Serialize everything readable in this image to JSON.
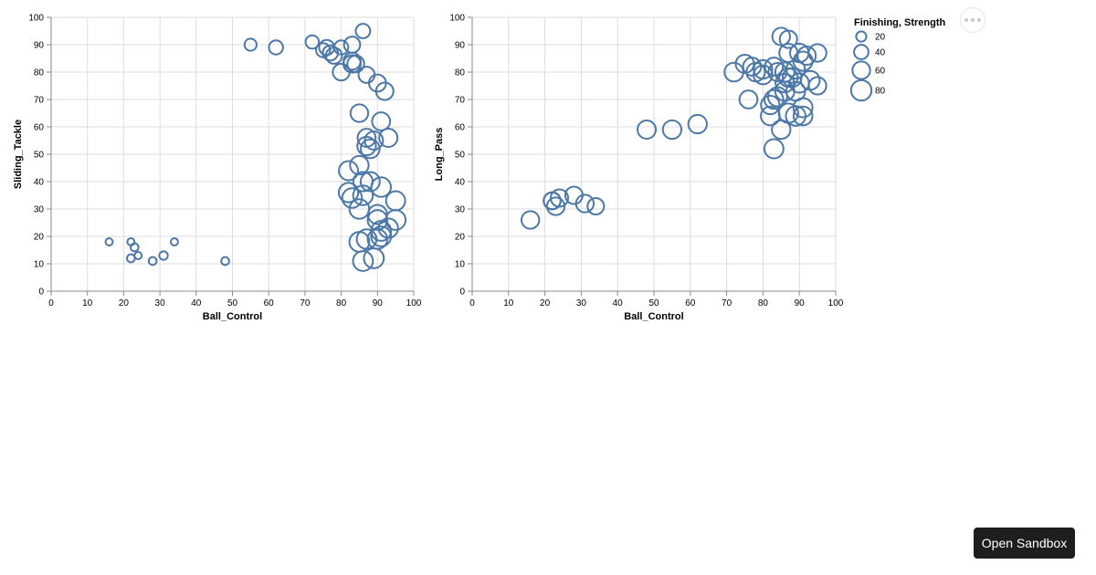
{
  "colors": {
    "mark": "#4c78a8"
  },
  "menu": {
    "icon": "more-horizontal-icon"
  },
  "sandbox_button": {
    "label": "Open Sandbox"
  },
  "legend": {
    "title": "Finishing, Strength",
    "values": [
      20,
      40,
      60,
      80
    ],
    "labels": [
      "20",
      "40",
      "60",
      "80"
    ]
  },
  "chart_data": [
    {
      "type": "scatter",
      "title": "",
      "xlabel": "Ball_Control",
      "ylabel": "Sliding_Tackle",
      "xlim": [
        0,
        100
      ],
      "ylim": [
        0,
        100
      ],
      "x_ticks": [
        "0",
        "10",
        "20",
        "30",
        "40",
        "50",
        "60",
        "70",
        "80",
        "90",
        "100"
      ],
      "y_ticks": [
        "0",
        "10",
        "20",
        "30",
        "40",
        "50",
        "60",
        "70",
        "80",
        "90",
        "100"
      ],
      "grid": true,
      "points": [
        {
          "x": 16,
          "y": 18,
          "size": 10
        },
        {
          "x": 22,
          "y": 18,
          "size": 10
        },
        {
          "x": 23,
          "y": 16,
          "size": 12
        },
        {
          "x": 22,
          "y": 12,
          "size": 12
        },
        {
          "x": 24,
          "y": 13,
          "size": 10
        },
        {
          "x": 28,
          "y": 11,
          "size": 12
        },
        {
          "x": 31,
          "y": 13,
          "size": 14
        },
        {
          "x": 34,
          "y": 18,
          "size": 10
        },
        {
          "x": 48,
          "y": 11,
          "size": 12
        },
        {
          "x": 55,
          "y": 90,
          "size": 28
        },
        {
          "x": 62,
          "y": 89,
          "size": 38
        },
        {
          "x": 72,
          "y": 91,
          "size": 34
        },
        {
          "x": 75,
          "y": 88,
          "size": 38
        },
        {
          "x": 76,
          "y": 89,
          "size": 44
        },
        {
          "x": 77,
          "y": 87,
          "size": 44
        },
        {
          "x": 78,
          "y": 86,
          "size": 50
        },
        {
          "x": 80,
          "y": 89,
          "size": 38
        },
        {
          "x": 80,
          "y": 80,
          "size": 54
        },
        {
          "x": 83,
          "y": 90,
          "size": 50
        },
        {
          "x": 83,
          "y": 84,
          "size": 56
        },
        {
          "x": 83,
          "y": 83,
          "size": 58
        },
        {
          "x": 84,
          "y": 83,
          "size": 54
        },
        {
          "x": 86,
          "y": 95,
          "size": 40
        },
        {
          "x": 87,
          "y": 79,
          "size": 50
        },
        {
          "x": 90,
          "y": 76,
          "size": 56
        },
        {
          "x": 92,
          "y": 73,
          "size": 58
        },
        {
          "x": 85,
          "y": 65,
          "size": 60
        },
        {
          "x": 91,
          "y": 62,
          "size": 62
        },
        {
          "x": 93,
          "y": 56,
          "size": 64
        },
        {
          "x": 87,
          "y": 56,
          "size": 62
        },
        {
          "x": 89,
          "y": 55,
          "size": 64
        },
        {
          "x": 87,
          "y": 53,
          "size": 66
        },
        {
          "x": 88,
          "y": 52,
          "size": 68
        },
        {
          "x": 85,
          "y": 46,
          "size": 66
        },
        {
          "x": 82,
          "y": 44,
          "size": 70
        },
        {
          "x": 88,
          "y": 40,
          "size": 70
        },
        {
          "x": 86,
          "y": 40,
          "size": 72
        },
        {
          "x": 91,
          "y": 38,
          "size": 74
        },
        {
          "x": 82,
          "y": 36,
          "size": 72
        },
        {
          "x": 83,
          "y": 34,
          "size": 74
        },
        {
          "x": 86,
          "y": 35,
          "size": 74
        },
        {
          "x": 95,
          "y": 33,
          "size": 70
        },
        {
          "x": 85,
          "y": 30,
          "size": 74
        },
        {
          "x": 90,
          "y": 28,
          "size": 70
        },
        {
          "x": 90,
          "y": 26,
          "size": 74
        },
        {
          "x": 95,
          "y": 26,
          "size": 76
        },
        {
          "x": 93,
          "y": 23,
          "size": 72
        },
        {
          "x": 91,
          "y": 22,
          "size": 76
        },
        {
          "x": 85,
          "y": 18,
          "size": 76
        },
        {
          "x": 87,
          "y": 19,
          "size": 74
        },
        {
          "x": 90,
          "y": 19,
          "size": 74
        },
        {
          "x": 91,
          "y": 20,
          "size": 76
        },
        {
          "x": 86,
          "y": 11,
          "size": 76
        },
        {
          "x": 89,
          "y": 12,
          "size": 76
        }
      ]
    },
    {
      "type": "scatter",
      "title": "",
      "xlabel": "Ball_Control",
      "ylabel": "Long_Pass",
      "xlim": [
        0,
        100
      ],
      "ylim": [
        0,
        100
      ],
      "x_ticks": [
        "0",
        "10",
        "20",
        "30",
        "40",
        "50",
        "60",
        "70",
        "80",
        "90",
        "100"
      ],
      "y_ticks": [
        "0",
        "10",
        "20",
        "30",
        "40",
        "50",
        "60",
        "70",
        "80",
        "90",
        "100"
      ],
      "grid": true,
      "points": [
        {
          "x": 16,
          "y": 26,
          "size": 60
        },
        {
          "x": 22,
          "y": 33,
          "size": 56
        },
        {
          "x": 22,
          "y": 33,
          "size": 54
        },
        {
          "x": 23,
          "y": 31,
          "size": 60
        },
        {
          "x": 24,
          "y": 34,
          "size": 58
        },
        {
          "x": 28,
          "y": 35,
          "size": 58
        },
        {
          "x": 31,
          "y": 32,
          "size": 60
        },
        {
          "x": 34,
          "y": 31,
          "size": 52
        },
        {
          "x": 48,
          "y": 59,
          "size": 64
        },
        {
          "x": 55,
          "y": 59,
          "size": 66
        },
        {
          "x": 62,
          "y": 61,
          "size": 66
        },
        {
          "x": 72,
          "y": 80,
          "size": 68
        },
        {
          "x": 75,
          "y": 83,
          "size": 64
        },
        {
          "x": 77,
          "y": 82,
          "size": 62
        },
        {
          "x": 78,
          "y": 80,
          "size": 66
        },
        {
          "x": 80,
          "y": 81,
          "size": 66
        },
        {
          "x": 80,
          "y": 79,
          "size": 68
        },
        {
          "x": 83,
          "y": 82,
          "size": 62
        },
        {
          "x": 84,
          "y": 80,
          "size": 64
        },
        {
          "x": 85,
          "y": 93,
          "size": 60
        },
        {
          "x": 87,
          "y": 92,
          "size": 58
        },
        {
          "x": 86,
          "y": 80,
          "size": 70
        },
        {
          "x": 87,
          "y": 78,
          "size": 66
        },
        {
          "x": 86,
          "y": 76,
          "size": 66
        },
        {
          "x": 86,
          "y": 73,
          "size": 70
        },
        {
          "x": 88,
          "y": 78,
          "size": 68
        },
        {
          "x": 89,
          "y": 81,
          "size": 66
        },
        {
          "x": 87,
          "y": 87,
          "size": 64
        },
        {
          "x": 90,
          "y": 87,
          "size": 66
        },
        {
          "x": 91,
          "y": 84,
          "size": 70
        },
        {
          "x": 92,
          "y": 86,
          "size": 64
        },
        {
          "x": 95,
          "y": 87,
          "size": 60
        },
        {
          "x": 93,
          "y": 77,
          "size": 68
        },
        {
          "x": 90,
          "y": 76,
          "size": 70
        },
        {
          "x": 89,
          "y": 73,
          "size": 68
        },
        {
          "x": 95,
          "y": 75,
          "size": 58
        },
        {
          "x": 76,
          "y": 70,
          "size": 62
        },
        {
          "x": 82,
          "y": 68,
          "size": 66
        },
        {
          "x": 83,
          "y": 70,
          "size": 68
        },
        {
          "x": 84,
          "y": 71,
          "size": 70
        },
        {
          "x": 82,
          "y": 64,
          "size": 68
        },
        {
          "x": 87,
          "y": 65,
          "size": 72
        },
        {
          "x": 89,
          "y": 64,
          "size": 74
        },
        {
          "x": 91,
          "y": 67,
          "size": 70
        },
        {
          "x": 91,
          "y": 64,
          "size": 68
        },
        {
          "x": 85,
          "y": 59,
          "size": 66
        },
        {
          "x": 83,
          "y": 52,
          "size": 70
        }
      ]
    }
  ]
}
